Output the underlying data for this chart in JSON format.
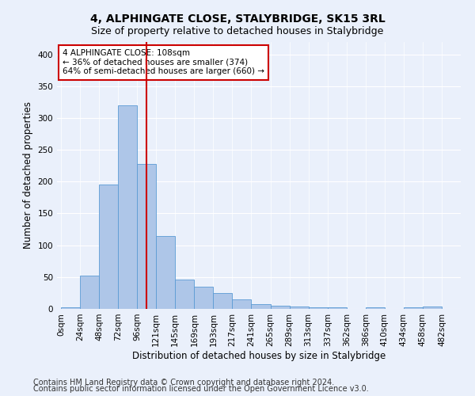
{
  "title": "4, ALPHINGATE CLOSE, STALYBRIDGE, SK15 3RL",
  "subtitle": "Size of property relative to detached houses in Stalybridge",
  "xlabel": "Distribution of detached houses by size in Stalybridge",
  "ylabel": "Number of detached properties",
  "footnote1": "Contains HM Land Registry data © Crown copyright and database right 2024.",
  "footnote2": "Contains public sector information licensed under the Open Government Licence v3.0.",
  "bar_color": "#aec6e8",
  "bar_edge_color": "#5b9bd5",
  "vline_x": 108,
  "vline_color": "#cc0000",
  "annotation_text": "4 ALPHINGATE CLOSE: 108sqm\n← 36% of detached houses are smaller (374)\n64% of semi-detached houses are larger (660) →",
  "annotation_box_color": "#ffffff",
  "annotation_box_edge": "#cc0000",
  "bin_width": 24,
  "bar_values": [
    2,
    52,
    196,
    320,
    228,
    114,
    46,
    35,
    25,
    15,
    7,
    5,
    4,
    3,
    3,
    0,
    2,
    0,
    2,
    4,
    0
  ],
  "bin_labels": [
    "0sqm",
    "24sqm",
    "48sqm",
    "72sqm",
    "96sqm",
    "121sqm",
    "145sqm",
    "169sqm",
    "193sqm",
    "217sqm",
    "241sqm",
    "265sqm",
    "289sqm",
    "313sqm",
    "337sqm",
    "362sqm",
    "386sqm",
    "410sqm",
    "434sqm",
    "458sqm",
    "482sqm"
  ],
  "ylim": [
    0,
    420
  ],
  "yticks": [
    0,
    50,
    100,
    150,
    200,
    250,
    300,
    350,
    400
  ],
  "bg_color": "#eaf0fb",
  "plot_bg_color": "#eaf0fb",
  "title_fontsize": 10,
  "subtitle_fontsize": 9,
  "xlabel_fontsize": 8.5,
  "ylabel_fontsize": 8.5,
  "tick_fontsize": 7.5,
  "footnote_fontsize": 7
}
